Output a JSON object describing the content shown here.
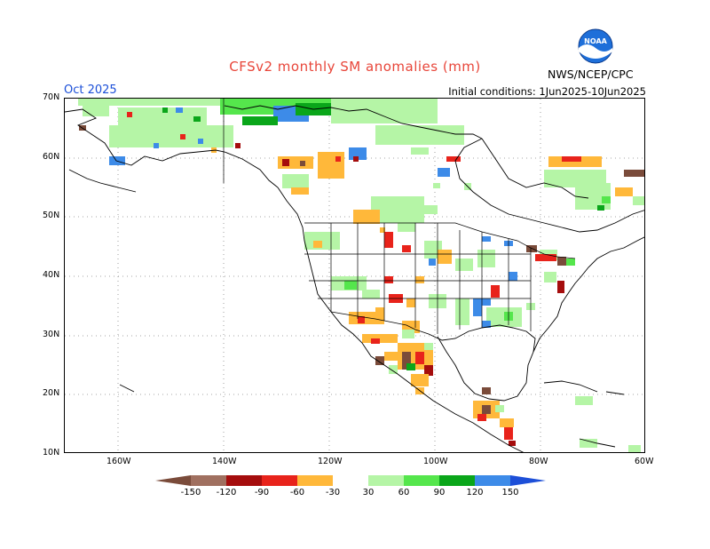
{
  "header": {
    "title": "CFSv2 monthly SM anomalies (mm)",
    "month": "Oct 2025",
    "initial_conditions": "Initial conditions: 1Jun2025-10Jun2025",
    "agency": "NWS/NCEP/CPC",
    "logo_text": "NOAA"
  },
  "axes": {
    "lat_labels": [
      "70N",
      "60N",
      "50N",
      "40N",
      "30N",
      "20N",
      "10N"
    ],
    "lon_labels": [
      "160W",
      "140W",
      "120W",
      "100W",
      "80W",
      "60W"
    ]
  },
  "legend": {
    "tick_labels": [
      "-150",
      "-120",
      "-90",
      "-60",
      "-30",
      "30",
      "60",
      "90",
      "120",
      "150"
    ],
    "colors": [
      "#7a4b3a",
      "#a07060",
      "#a50d0d",
      "#e8231b",
      "#ff6a1a",
      "#ffb83a",
      "#ffffff",
      "#b5f5a6",
      "#55e64c",
      "#0aa61a",
      "#3d8be8",
      "#1d4fd8"
    ]
  },
  "colors": {
    "title": "#e8463a",
    "month": "#1b4fd8",
    "noaa_blue": "#1e6fd9"
  }
}
